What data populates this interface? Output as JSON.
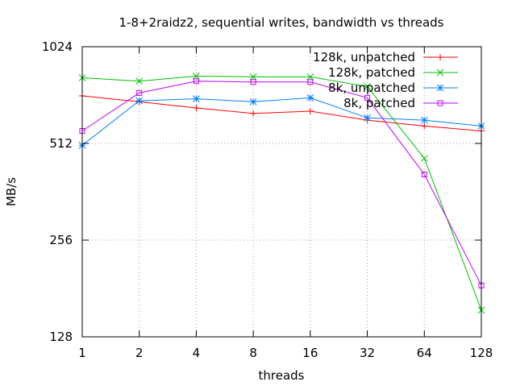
{
  "chart_data": {
    "type": "line",
    "title": "1-8+2raidz2, sequential writes, bandwidth vs threads",
    "xlabel": "threads",
    "ylabel": "MB/s",
    "x_scale": "log2",
    "y_scale": "log2",
    "x": [
      1,
      2,
      4,
      8,
      16,
      32,
      64,
      128
    ],
    "xticks": [
      "1",
      "2",
      "4",
      "8",
      "16",
      "32",
      "64",
      "128"
    ],
    "yticks": [
      128,
      256,
      512,
      1024
    ],
    "yticklabels": [
      "128",
      "256",
      "512",
      "1024"
    ],
    "ylim": [
      128,
      1024
    ],
    "grid": true,
    "legend_position": "top-right",
    "series": [
      {
        "name": "128k, unpatched",
        "color": "#ff0000",
        "marker": "plus",
        "values": [
          720,
          690,
          660,
          635,
          645,
          605,
          580,
          560
        ]
      },
      {
        "name": "128k, patched",
        "color": "#00c000",
        "marker": "cross",
        "values": [
          820,
          800,
          830,
          825,
          825,
          770,
          460,
          155
        ]
      },
      {
        "name": "8k, unpatched",
        "color": "#0080ff",
        "marker": "star",
        "values": [
          505,
          695,
          705,
          690,
          710,
          615,
          605,
          580
        ]
      },
      {
        "name": "8k, patched",
        "color": "#c000ff",
        "marker": "square",
        "values": [
          560,
          735,
          800,
          795,
          795,
          710,
          410,
          185
        ]
      }
    ]
  }
}
